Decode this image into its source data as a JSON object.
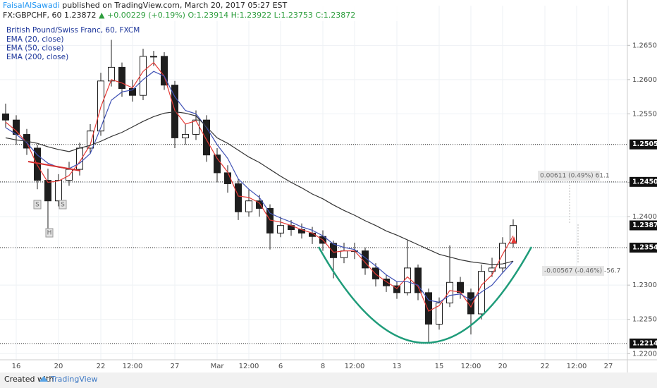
{
  "header": {
    "author": "FaisalAlSawadi",
    "published": "published on TradingView.com, March 20, 2017 05:27 EST",
    "symbol": "FX:GBPCHF, 60",
    "price": "1.23872",
    "change": "▲ +0.00229 (+0.19%)",
    "o": "O:1.23914",
    "h": "H:1.23922",
    "l": "L:1.23753",
    "c": "C:1.23872"
  },
  "footer": {
    "created": "Created with",
    "brand": "TradingView"
  },
  "chart_data": {
    "type": "candlestick",
    "title": "British Pound/Swiss Franc, 60, FXCM",
    "categories": [
      null,
      "16",
      null,
      null,
      null,
      "20",
      null,
      null,
      null,
      "22",
      null,
      null,
      "12:00",
      null,
      null,
      null,
      "27",
      null,
      null,
      null,
      "Mar",
      null,
      null,
      "12:00",
      null,
      null,
      "6",
      null,
      null,
      null,
      "8",
      null,
      null,
      "12:00",
      null,
      null,
      null,
      "13",
      null,
      null,
      null,
      "15",
      null,
      null,
      "12:00",
      null,
      null,
      "20",
      null,
      null,
      null,
      "22",
      null,
      null,
      "12:00",
      null,
      null,
      "27"
    ],
    "open": [
      1.255,
      1.2541,
      1.252,
      1.25,
      1.2453,
      1.2423,
      1.2453,
      1.2469,
      1.25,
      1.2525,
      1.2598,
      1.2618,
      1.2587,
      1.2577,
      1.2634,
      1.2634,
      1.2592,
      1.2515,
      1.252,
      1.2541,
      1.249,
      1.2464,
      1.2448,
      1.2407,
      1.2423,
      1.2412,
      1.2376,
      1.2387,
      1.2381,
      1.2376,
      1.2371,
      1.2361,
      1.234,
      1.235,
      1.235,
      1.2325,
      1.2309,
      1.2299,
      1.2289,
      1.2325,
      1.2289,
      1.2243,
      1.2274,
      1.2304,
      1.2289,
      1.2258,
      1.232,
      1.2325,
      1.2361,
      null,
      null,
      null,
      null,
      null,
      null,
      null,
      null,
      null
    ],
    "high": [
      1.2565,
      1.2548,
      1.2528,
      1.2505,
      1.247,
      1.2462,
      1.248,
      1.2508,
      1.2535,
      1.261,
      1.2658,
      1.2625,
      1.26,
      1.2645,
      1.2642,
      1.264,
      1.2598,
      1.2535,
      1.2555,
      1.2548,
      1.25,
      1.2475,
      1.2455,
      1.244,
      1.2432,
      1.2418,
      1.24,
      1.2395,
      1.239,
      1.2385,
      1.238,
      1.2365,
      1.2362,
      1.2362,
      1.2355,
      1.2332,
      1.2315,
      1.2305,
      1.2365,
      1.233,
      1.2295,
      1.2282,
      1.2358,
      1.2312,
      1.2295,
      1.233,
      1.234,
      1.237,
      1.2396,
      null,
      null,
      null,
      null,
      null,
      null,
      null,
      null,
      null
    ],
    "low": [
      1.253,
      1.2505,
      1.249,
      1.244,
      1.2378,
      1.2415,
      1.2445,
      1.246,
      1.2492,
      1.2518,
      1.259,
      1.2575,
      1.2568,
      1.257,
      1.262,
      1.2585,
      1.25,
      1.2505,
      1.2512,
      1.248,
      1.245,
      1.2435,
      1.2395,
      1.24,
      1.24,
      1.2352,
      1.237,
      1.2372,
      1.2368,
      1.236,
      1.235,
      1.231,
      1.2332,
      1.2338,
      1.2315,
      1.2298,
      1.229,
      1.228,
      1.2285,
      1.2278,
      1.2215,
      1.2235,
      1.2268,
      1.228,
      1.2228,
      1.225,
      1.2312,
      1.2318,
      1.2355,
      null,
      null,
      null,
      null,
      null,
      null,
      null,
      null,
      null
    ],
    "close": [
      1.2541,
      1.252,
      1.25,
      1.2453,
      1.2423,
      1.2453,
      1.2469,
      1.25,
      1.2525,
      1.2598,
      1.2618,
      1.2587,
      1.2577,
      1.2634,
      1.2634,
      1.2592,
      1.2515,
      1.252,
      1.2541,
      1.249,
      1.2464,
      1.2448,
      1.2407,
      1.2423,
      1.2412,
      1.2376,
      1.2387,
      1.2381,
      1.2376,
      1.2371,
      1.2361,
      1.234,
      1.235,
      1.235,
      1.2325,
      1.2309,
      1.2299,
      1.2289,
      1.2325,
      1.2289,
      1.2243,
      1.2274,
      1.2304,
      1.2289,
      1.2258,
      1.232,
      1.2325,
      1.2361,
      1.2387,
      null,
      null,
      null,
      null,
      null,
      null,
      null,
      null,
      null
    ],
    "up_color": "#ffffff",
    "down_color": "#1e1e1e",
    "series": [
      {
        "name": "EMA (20, close)",
        "color": "#e53935",
        "values": [
          1.2538,
          1.2525,
          1.2508,
          1.2475,
          1.245,
          1.2452,
          1.246,
          1.248,
          1.2505,
          1.256,
          1.26,
          1.2595,
          1.2588,
          1.2612,
          1.2625,
          1.2605,
          1.2555,
          1.2535,
          1.254,
          1.2512,
          1.2485,
          1.2465,
          1.243,
          1.2428,
          1.242,
          1.2395,
          1.2392,
          1.2387,
          1.2381,
          1.2376,
          1.2366,
          1.2348,
          1.235,
          1.235,
          1.2333,
          1.2316,
          1.2305,
          1.2295,
          1.2312,
          1.2298,
          1.2262,
          1.227,
          1.2292,
          1.229,
          1.2268,
          1.23,
          1.2315,
          1.2345,
          1.2372,
          null,
          null,
          null,
          null,
          null,
          null,
          null,
          null,
          null
        ]
      },
      {
        "name": "EMA (50, close)",
        "color": "#3f51b5",
        "values": [
          1.253,
          1.252,
          1.2508,
          1.249,
          1.2478,
          1.2472,
          1.247,
          1.2478,
          1.2492,
          1.253,
          1.257,
          1.2582,
          1.2585,
          1.26,
          1.2612,
          1.2605,
          1.2575,
          1.2555,
          1.255,
          1.253,
          1.2505,
          1.2485,
          1.2455,
          1.244,
          1.2428,
          1.2405,
          1.2398,
          1.2392,
          1.2385,
          1.238,
          1.2372,
          1.236,
          1.2355,
          1.2352,
          1.234,
          1.2328,
          1.2315,
          1.2305,
          1.2305,
          1.23,
          1.2278,
          1.2275,
          1.2285,
          1.2287,
          1.2278,
          1.229,
          1.23,
          1.2318,
          1.2335,
          null,
          null,
          null,
          null,
          null,
          null,
          null,
          null,
          null
        ]
      },
      {
        "name": "EMA (200, close)",
        "color": "#333333",
        "values": [
          1.2515,
          1.2512,
          1.251,
          1.2507,
          1.2502,
          1.2498,
          1.2495,
          1.25,
          1.2504,
          1.251,
          1.2517,
          1.2523,
          1.2531,
          1.2539,
          1.2546,
          1.2551,
          1.2553,
          1.2551,
          1.2547,
          1.2531,
          1.2515,
          1.2507,
          1.2497,
          1.2487,
          1.2479,
          1.2469,
          1.2459,
          1.245,
          1.2442,
          1.2433,
          1.2426,
          1.2417,
          1.2409,
          1.2402,
          1.2394,
          1.2387,
          1.2379,
          1.2373,
          1.2366,
          1.2359,
          1.2352,
          1.2345,
          1.2341,
          1.2337,
          1.2334,
          1.2332,
          1.233,
          1.2331,
          1.2335,
          null,
          null,
          null,
          null,
          null,
          null,
          null,
          null,
          null
        ]
      }
    ],
    "ylim": [
      1.2191,
      1.2708
    ],
    "yticks": [
      {
        "value": 1.22,
        "label": "1.22000"
      },
      {
        "value": 1.225,
        "label": "1.22500"
      },
      {
        "value": 1.23,
        "label": "1.23000"
      },
      {
        "value": 1.24,
        "label": "1.24000"
      },
      {
        "value": 1.245,
        "label": "1.24500"
      },
      {
        "value": 1.255,
        "label": "1.25500"
      },
      {
        "value": 1.26,
        "label": "1.26000"
      },
      {
        "value": 1.265,
        "label": "1.26500"
      }
    ],
    "grid": true,
    "horizontal_lines": [
      1.25054,
      1.24507,
      1.23547,
      1.22148
    ],
    "last_price": 1.23872,
    "annotations": [
      "S",
      "H",
      "S",
      "0.00611 (0.49%) 61.1",
      "-0.00567 (-0.46%) -56.7"
    ]
  }
}
